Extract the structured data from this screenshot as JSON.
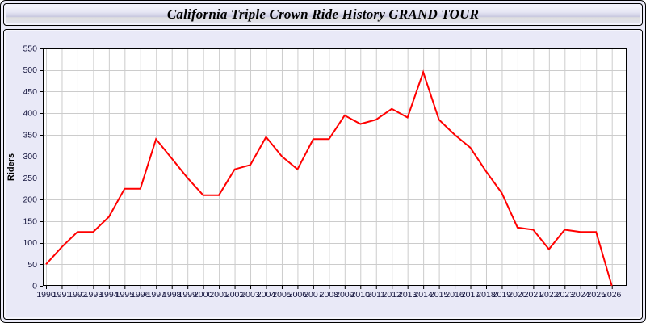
{
  "page": {
    "title": "California Triple Crown Ride History GRAND TOUR"
  },
  "chart_data": {
    "type": "line",
    "title": "California Triple Crown Ride History GRAND TOUR",
    "xlabel": "",
    "ylabel": "Riders",
    "x": [
      1990,
      1991,
      1992,
      1993,
      1994,
      1995,
      1996,
      1997,
      1998,
      1999,
      2000,
      2001,
      2002,
      2003,
      2004,
      2005,
      2006,
      2007,
      2008,
      2009,
      2010,
      2011,
      2012,
      2013,
      2014,
      2015,
      2016,
      2017,
      2018,
      2019,
      2020,
      2021,
      2022,
      2023,
      2024,
      2025,
      2026
    ],
    "series": [
      {
        "name": "Riders",
        "values": [
          50,
          90,
          125,
          125,
          160,
          225,
          225,
          340,
          295,
          250,
          210,
          210,
          270,
          280,
          345,
          300,
          270,
          340,
          340,
          395,
          375,
          385,
          410,
          390,
          495,
          385,
          350,
          320,
          265,
          215,
          135,
          130,
          85,
          130,
          125,
          125,
          0
        ]
      }
    ],
    "ylim": [
      0,
      550
    ],
    "ytick_step": 50,
    "grid": true,
    "legend_position": "none",
    "line_color": "#ff0000",
    "grid_color": "#cccccc",
    "axis_color": "#000000",
    "plot_background": "#ffffff",
    "panel_background": "#e9e9f7",
    "tick_label_color": "#16163f"
  }
}
